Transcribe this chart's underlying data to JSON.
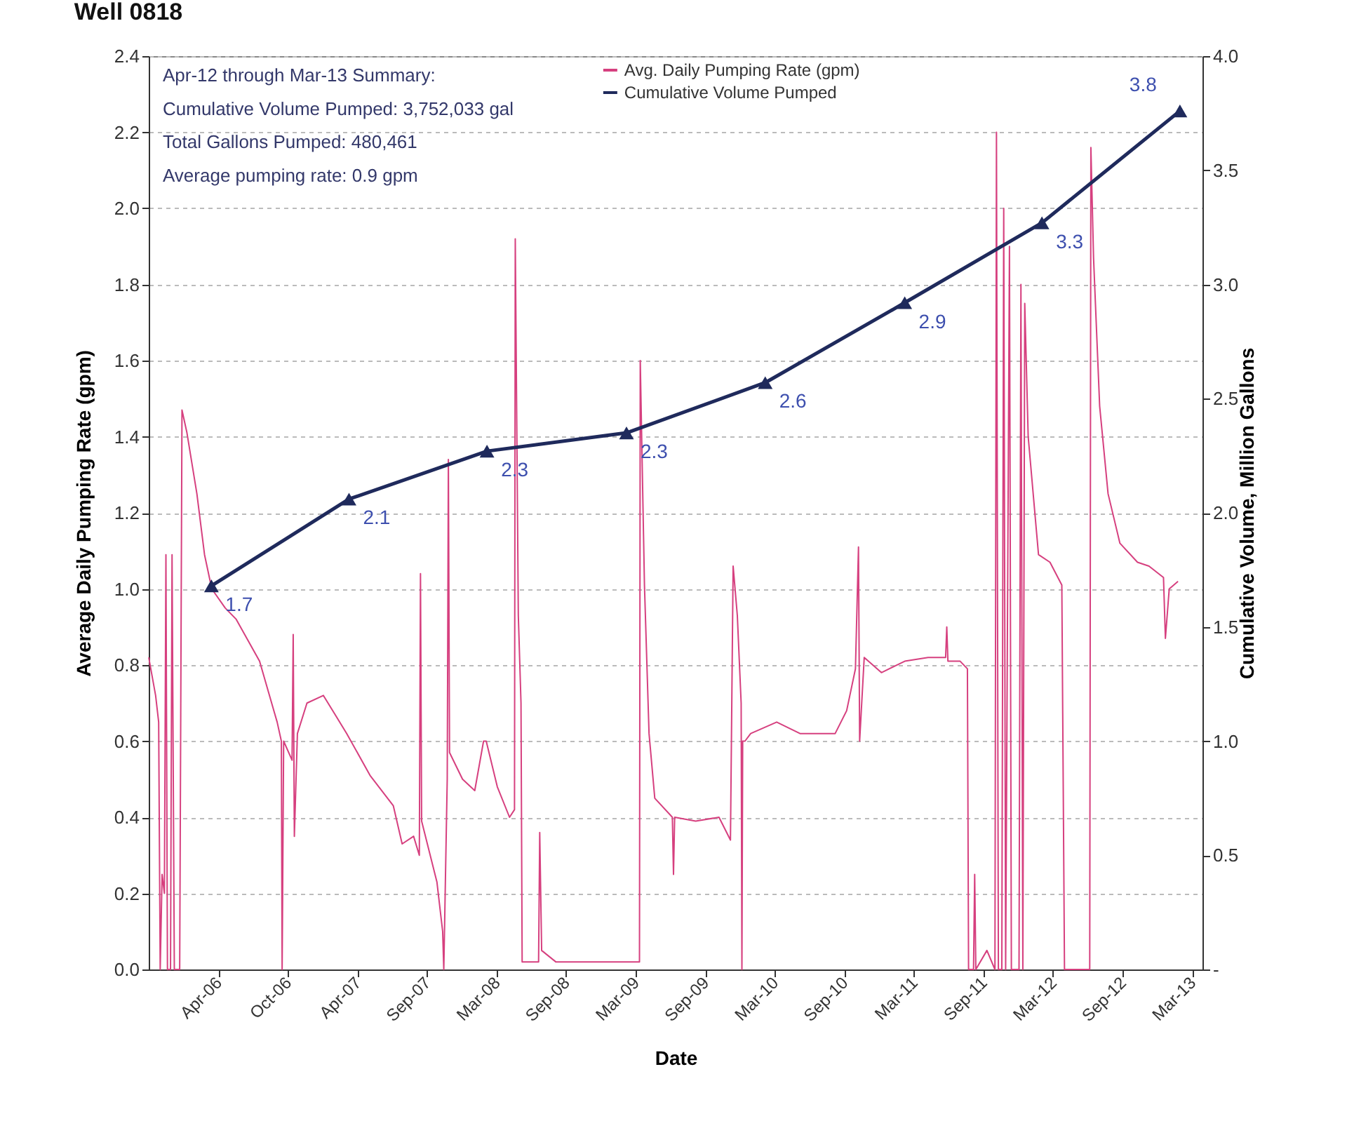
{
  "chart_data": {
    "type": "line",
    "title": "Well 0818",
    "xlabel": "Date",
    "ylabel": "Average Daily Pumping Rate (gpm)",
    "y2label": "Cumulative Volume, Million Gallons",
    "annotations": [
      "Apr-12 through Mar-13 Summary:",
      "Cumulative Volume Pumped:  3,752,033 gal",
      "Total Gallons Pumped: 480,461",
      "Average pumping rate: 0.9 gpm"
    ],
    "xlim": [
      "2005-10-02",
      "2013-04-20"
    ],
    "xticks": [
      {
        "value": "2006-04-02",
        "label": "Apr-06"
      },
      {
        "value": "2006-10-01",
        "label": "Oct-06"
      },
      {
        "value": "2007-04-01",
        "label": "Apr-07"
      },
      {
        "value": "2007-09-30",
        "label": "Sep-07"
      },
      {
        "value": "2008-03-30",
        "label": "Mar-08"
      },
      {
        "value": "2008-09-28",
        "label": "Sep-08"
      },
      {
        "value": "2009-03-29",
        "label": "Mar-09"
      },
      {
        "value": "2009-09-27",
        "label": "Sep-09"
      },
      {
        "value": "2010-03-28",
        "label": "Mar-10"
      },
      {
        "value": "2010-09-26",
        "label": "Sep-10"
      },
      {
        "value": "2011-03-27",
        "label": "Mar-11"
      },
      {
        "value": "2011-09-25",
        "label": "Sep-11"
      },
      {
        "value": "2012-03-25",
        "label": "Mar-12"
      },
      {
        "value": "2012-09-23",
        "label": "Sep-12"
      },
      {
        "value": "2013-03-24",
        "label": "Mar-13"
      }
    ],
    "ylim": [
      0,
      2.4
    ],
    "yticks": [
      {
        "value": 0,
        "label": "0.0"
      },
      0.2,
      0.4,
      0.6,
      0.8,
      {
        "value": 1,
        "label": "1.0"
      },
      1.2,
      1.4,
      1.6,
      1.8,
      {
        "value": 2,
        "label": "2.0"
      },
      2.2,
      2.4
    ],
    "y2lim": [
      0,
      4
    ],
    "y2ticks": [
      {
        "value": 0,
        "label": "-"
      },
      0.5,
      {
        "value": 1,
        "label": "1.0"
      },
      1.5,
      {
        "value": 2,
        "label": "2.0"
      },
      2.5,
      {
        "value": 3,
        "label": "3.0"
      },
      3.5,
      {
        "value": 4,
        "label": "4.0"
      }
    ],
    "grid": "y",
    "legend": "top",
    "series": [
      {
        "name": "Avg. Daily Pumping Rate (gpm)",
        "color": "#d6407f",
        "x": [
          "2005-10-02",
          "2005-10-20",
          "2005-10-28",
          "2005-11-01",
          "2005-11-06",
          "2005-11-12",
          "2005-11-16",
          "2005-11-20",
          "2005-11-28",
          "2005-12-02",
          "2005-12-08",
          "2005-12-22",
          "2005-12-28",
          "2006-01-10",
          "2006-02-05",
          "2006-02-25",
          "2006-03-16",
          "2006-04-20",
          "2006-05-19",
          "2006-07-19",
          "2006-09-03",
          "2006-09-14",
          "2006-09-16",
          "2006-09-20",
          "2006-10-12",
          "2006-10-15",
          "2006-10-18",
          "2006-10-26",
          "2006-11-20",
          "2007-01-02",
          "2007-03-04",
          "2007-05-04",
          "2007-07-04",
          "2007-07-27",
          "2007-08-26",
          "2007-09-10",
          "2007-09-13",
          "2007-09-16",
          "2007-10-26",
          "2007-11-10",
          "2007-11-13",
          "2007-11-22",
          "2007-11-25",
          "2007-11-28",
          "2008-01-01",
          "2008-02-02",
          "2008-02-25",
          "2008-03-03",
          "2008-04-01",
          "2008-05-03",
          "2008-05-16",
          "2008-05-18",
          "2008-05-26",
          "2008-06-02",
          "2008-06-05",
          "2008-07-18",
          "2008-07-21",
          "2008-07-26",
          "2008-09-01",
          "2009-04-08",
          "2009-04-10",
          "2009-04-21",
          "2009-05-03",
          "2009-05-18",
          "2009-07-03",
          "2009-07-06",
          "2009-07-09",
          "2009-09-02",
          "2009-11-02",
          "2009-12-02",
          "2009-12-09",
          "2009-12-20",
          "2009-12-30",
          "2010-01-01",
          "2010-01-03",
          "2010-01-09",
          "2010-01-24",
          "2010-04-02",
          "2010-06-02",
          "2010-09-02",
          "2010-10-02",
          "2010-10-25",
          "2010-11-02",
          "2010-11-05",
          "2010-11-17",
          "2011-01-01",
          "2011-03-03",
          "2011-05-03",
          "2011-06-18",
          "2011-06-21",
          "2011-06-24",
          "2011-07-26",
          "2011-08-14",
          "2011-08-17",
          "2011-08-30",
          "2011-09-02",
          "2011-09-05",
          "2011-10-04",
          "2011-10-25",
          "2011-10-29",
          "2011-11-03",
          "2011-11-12",
          "2011-11-17",
          "2011-11-22",
          "2011-12-02",
          "2011-12-07",
          "2011-12-27",
          "2012-01-01",
          "2012-01-06",
          "2012-01-11",
          "2012-01-20",
          "2012-02-16",
          "2012-03-17",
          "2012-04-17",
          "2012-04-24",
          "2012-06-29",
          "2012-07-02",
          "2012-07-09",
          "2012-07-25",
          "2012-08-16",
          "2012-09-16",
          "2012-11-01",
          "2012-12-01",
          "2013-01-08",
          "2013-01-13",
          "2013-01-23",
          "2013-02-15"
        ],
        "values": [
          0.82,
          0.72,
          0.65,
          0.0,
          0.25,
          0.2,
          1.09,
          0.0,
          0.0,
          1.09,
          0.0,
          0.0,
          1.47,
          1.41,
          1.25,
          1.09,
          1.0,
          0.95,
          0.92,
          0.81,
          0.65,
          0.6,
          0.0,
          0.6,
          0.55,
          0.88,
          0.35,
          0.62,
          0.7,
          0.72,
          0.62,
          0.51,
          0.43,
          0.33,
          0.35,
          0.3,
          1.04,
          0.39,
          0.23,
          0.1,
          0.0,
          0.5,
          1.34,
          0.57,
          0.5,
          0.47,
          0.6,
          0.6,
          0.48,
          0.4,
          0.42,
          1.92,
          0.93,
          0.7,
          0.02,
          0.02,
          0.36,
          0.05,
          0.02,
          0.02,
          1.6,
          1.01,
          0.62,
          0.45,
          0.4,
          0.25,
          0.4,
          0.39,
          0.4,
          0.34,
          1.06,
          0.93,
          0.7,
          0.0,
          0.6,
          0.6,
          0.62,
          0.65,
          0.62,
          0.62,
          0.68,
          0.79,
          1.11,
          0.6,
          0.82,
          0.78,
          0.81,
          0.82,
          0.82,
          0.9,
          0.81,
          0.81,
          0.79,
          0.0,
          0.0,
          0.25,
          0.0,
          0.05,
          0.0,
          2.2,
          0.0,
          0.0,
          2.0,
          0.0,
          1.9,
          0.0,
          0.0,
          1.8,
          0.0,
          1.75,
          1.4,
          1.09,
          1.07,
          1.01,
          0.0,
          0.0,
          2.16,
          1.87,
          1.48,
          1.25,
          1.12,
          1.07,
          1.06,
          1.03,
          0.87,
          1.0,
          1.02
        ]
      },
      {
        "name": "Cumulative Volume Pumped",
        "color": "#1f2a5c",
        "axis": "y2",
        "marker": "triangle",
        "x": [
          "2006-03-15",
          "2007-03-10",
          "2008-03-05",
          "2009-03-05",
          "2010-03-03",
          "2011-03-03",
          "2012-02-25",
          "2013-02-20"
        ],
        "values": [
          1.68,
          2.06,
          2.27,
          2.35,
          2.57,
          2.92,
          3.27,
          3.76
        ],
        "value_labels": [
          "1.7",
          "2.1",
          "2.3",
          "2.3",
          "2.6",
          "2.9",
          "3.3",
          "3.8"
        ]
      }
    ]
  }
}
